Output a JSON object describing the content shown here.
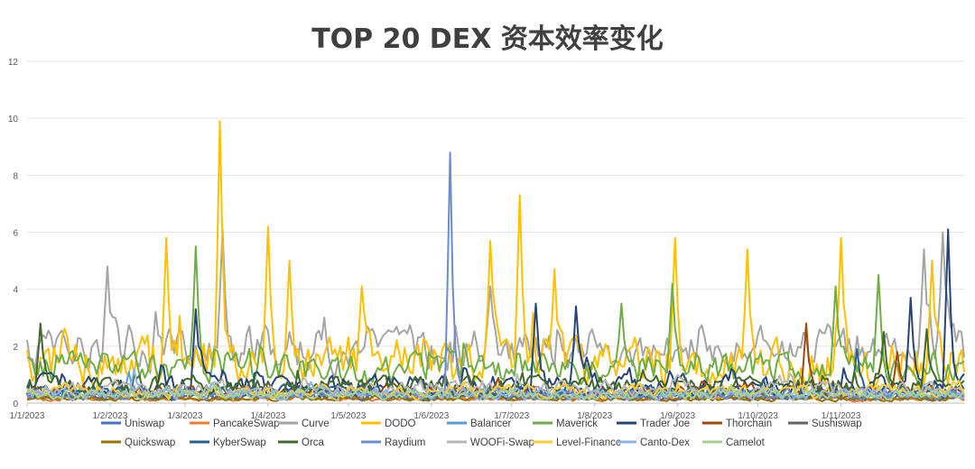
{
  "chart_data": {
    "type": "line",
    "title": "TOP 20 DEX 资本效率变化",
    "xlabel": "",
    "ylabel": "",
    "ylim": [
      0,
      12
    ],
    "yticks": [
      "0",
      "2",
      "4",
      "6",
      "8",
      "10",
      "12"
    ],
    "xticks": [
      "1/1/2023",
      "1/2/2023",
      "1/3/2023",
      "1/4/2023",
      "1/5/2023",
      "1/6/2023",
      "1/7/2023",
      "1/8/2023",
      "1/9/2023",
      "1/10/2023",
      "1/11/2023"
    ],
    "x_range_days": [
      0,
      350
    ],
    "grid": "horizontal",
    "legend_position": "bottom",
    "series": [
      {
        "name": "Uniswap",
        "color": "#4472C4",
        "base": 0.3,
        "amp": 0.25,
        "spikes": []
      },
      {
        "name": "PancakeSwap",
        "color": "#ED7D31",
        "base": 0.15,
        "amp": 0.12,
        "spikes": []
      },
      {
        "name": "Curve",
        "color": "#A5A5A5",
        "base": 1.9,
        "amp": 1.1,
        "spikes": [
          [
            30,
            4.8
          ],
          [
            73,
            6.1
          ],
          [
            173,
            4.1
          ],
          [
            335,
            5.4
          ],
          [
            342,
            6.0
          ]
        ]
      },
      {
        "name": "DODO",
        "color": "#FFC000",
        "base": 1.4,
        "amp": 1.3,
        "spikes": [
          [
            52,
            5.8
          ],
          [
            72,
            9.9
          ],
          [
            90,
            6.2
          ],
          [
            98,
            5.0
          ],
          [
            125,
            4.1
          ],
          [
            173,
            5.7
          ],
          [
            184,
            7.3
          ],
          [
            197,
            4.7
          ],
          [
            242,
            5.8
          ],
          [
            269,
            5.4
          ],
          [
            304,
            5.8
          ],
          [
            338,
            5.0
          ]
        ]
      },
      {
        "name": "Balancer",
        "color": "#5B9BD5",
        "base": 0.3,
        "amp": 0.3,
        "spikes": [
          [
            38,
            1.1
          ]
        ]
      },
      {
        "name": "Maverick",
        "color": "#70AD47",
        "base": 1.2,
        "amp": 0.8,
        "spikes": [
          [
            63,
            5.5
          ],
          [
            222,
            3.5
          ],
          [
            241,
            4.2
          ],
          [
            302,
            4.1
          ],
          [
            318,
            4.5
          ]
        ]
      },
      {
        "name": "Trader Joe",
        "color": "#264478",
        "base": 0.6,
        "amp": 0.6,
        "spikes": [
          [
            63,
            3.3
          ],
          [
            190,
            3.5
          ],
          [
            205,
            3.4
          ],
          [
            330,
            3.7
          ],
          [
            344,
            6.1
          ]
        ]
      },
      {
        "name": "Thorchain",
        "color": "#9E480E",
        "base": 0.4,
        "amp": 0.3,
        "spikes": [
          [
            291,
            2.8
          ],
          [
            325,
            1.8
          ]
        ]
      },
      {
        "name": "Sushiswap",
        "color": "#636363",
        "base": 0.2,
        "amp": 0.15,
        "spikes": []
      },
      {
        "name": "Quickswap",
        "color": "#997300",
        "base": 0.15,
        "amp": 0.12,
        "spikes": []
      },
      {
        "name": "KyberSwap",
        "color": "#255E91",
        "base": 0.4,
        "amp": 0.35,
        "spikes": [
          [
            310,
            1.9
          ]
        ]
      },
      {
        "name": "Orca",
        "color": "#43682B",
        "base": 0.6,
        "amp": 0.5,
        "spikes": [
          [
            5,
            2.8
          ],
          [
            320,
            2.5
          ],
          [
            336,
            2.6
          ]
        ]
      },
      {
        "name": "Raydium",
        "color": "#698ED0",
        "base": 0.3,
        "amp": 0.25,
        "spikes": [
          [
            158,
            8.8
          ]
        ]
      },
      {
        "name": "WOOFi-Swap",
        "color": "#B7B7B7",
        "base": 0.5,
        "amp": 0.4,
        "spikes": []
      },
      {
        "name": "Level-Finance",
        "color": "#FFCD33",
        "base": 0.4,
        "amp": 0.35,
        "spikes": []
      },
      {
        "name": "Canto-Dex",
        "color": "#8CB4E3",
        "base": 0.3,
        "amp": 0.3,
        "spikes": [
          [
            40,
            1.2
          ]
        ]
      },
      {
        "name": "Camelot",
        "color": "#A9D18E",
        "base": 0.3,
        "amp": 0.25,
        "spikes": []
      }
    ]
  }
}
